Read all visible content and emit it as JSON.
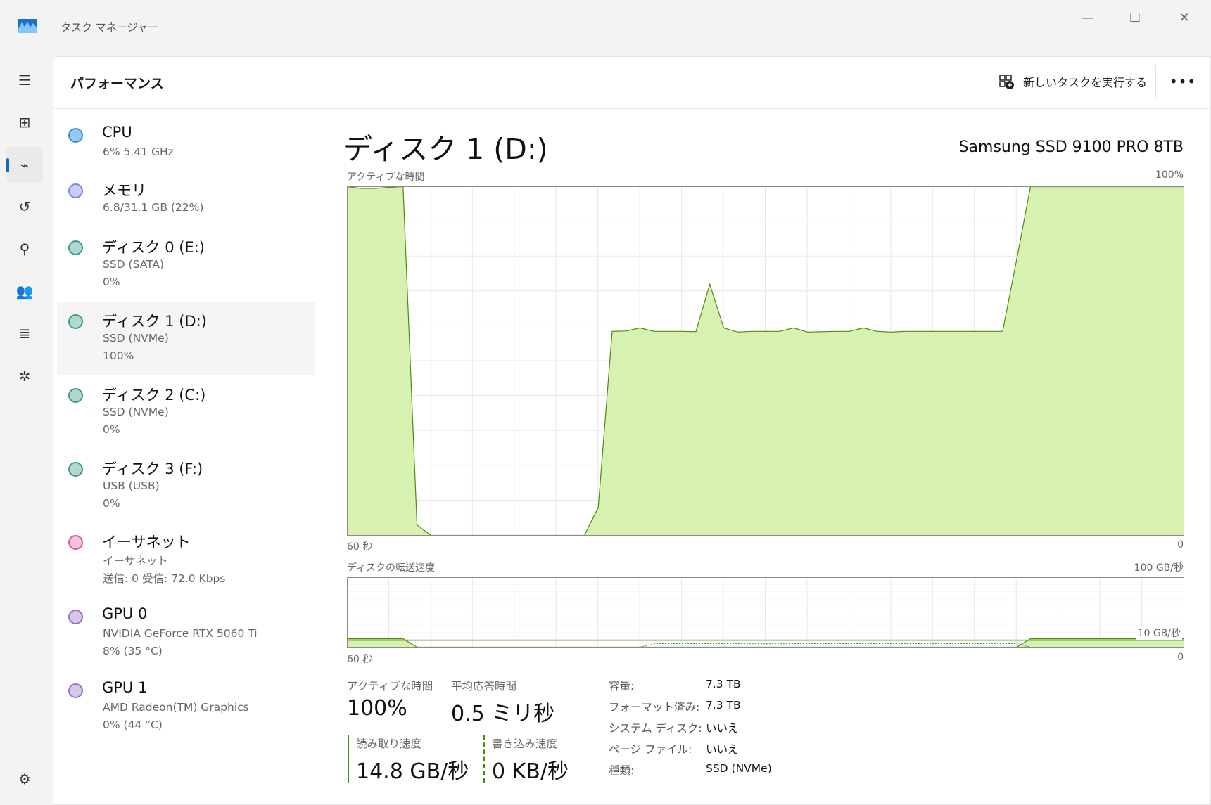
{
  "window": {
    "title": "タスク マネージャー",
    "controls": {
      "minimize": "—",
      "maximize": "☐",
      "close": "✕"
    }
  },
  "rail": {
    "items": [
      {
        "name": "menu-icon",
        "glyph": "☰"
      },
      {
        "name": "processes-icon",
        "glyph": "⊞"
      },
      {
        "name": "performance-icon",
        "glyph": "⌁",
        "selected": true
      },
      {
        "name": "app-history-icon",
        "glyph": "↺"
      },
      {
        "name": "startup-apps-icon",
        "glyph": "⚲"
      },
      {
        "name": "users-icon",
        "glyph": "👥"
      },
      {
        "name": "details-icon",
        "glyph": "≣"
      },
      {
        "name": "services-icon",
        "glyph": "✲"
      }
    ],
    "settings": {
      "name": "settings-gear-icon",
      "glyph": "⚙"
    }
  },
  "header": {
    "title": "パフォーマンス",
    "new_task": "新しいタスクを実行する",
    "more": "•••"
  },
  "devices": [
    {
      "title": "CPU",
      "lines": [
        "6%  5.41 GHz"
      ],
      "color": "#3a8fd6",
      "fill": "#9ac7ee"
    },
    {
      "title": "メモリ",
      "lines": [
        "6.8/31.1 GB (22%)"
      ],
      "color": "#7b87e8",
      "fill": "#c9cdf7"
    },
    {
      "title": "ディスク 0 (E:)",
      "lines": [
        "SSD (SATA)",
        "0%"
      ],
      "color": "#3d9a8a",
      "fill": "#b2d6d0"
    },
    {
      "title": "ディスク 1 (D:)",
      "lines": [
        "SSD (NVMe)",
        "100%"
      ],
      "color": "#3d9a8a",
      "fill": "#b2d6d0",
      "selected": true
    },
    {
      "title": "ディスク 2 (C:)",
      "lines": [
        "SSD (NVMe)",
        "0%"
      ],
      "color": "#3d9a8a",
      "fill": "#b2d6d0"
    },
    {
      "title": "ディスク 3 (F:)",
      "lines": [
        "USB (USB)",
        "0%"
      ],
      "color": "#3d9a8a",
      "fill": "#b2d6d0"
    },
    {
      "title": "イーサネット",
      "lines": [
        "イーサネット",
        "送信: 0 受信: 72.0 Kbps"
      ],
      "color": "#d65aa4",
      "fill": "#f6c1e0"
    },
    {
      "title": "GPU 0",
      "lines": [
        "NVIDIA GeForce RTX 5060 Ti",
        "8% (35 °C)"
      ],
      "color": "#9a72c4",
      "fill": "#d6c6ea"
    },
    {
      "title": "GPU 1",
      "lines": [
        "AMD Radeon(TM) Graphics",
        "0% (44 °C)"
      ],
      "color": "#9a72c4",
      "fill": "#d6c6ea"
    }
  ],
  "detail": {
    "title": "ディスク 1 (D:)",
    "model": "Samsung SSD 9100 PRO 8TB",
    "stats": {
      "active_label": "アクティブな時間",
      "active_value": "100%",
      "response_label": "平均応答時間",
      "response_value": "0.5 ミリ秒",
      "read_label": "読み取り速度",
      "read_value": "14.8 GB/秒",
      "write_label": "書き込み速度",
      "write_value": "0 KB/秒"
    },
    "properties": [
      {
        "label": "容量:",
        "value": "7.3 TB"
      },
      {
        "label": "フォーマット済み:",
        "value": "7.3 TB"
      },
      {
        "label": "システム ディスク:",
        "value": "いいえ"
      },
      {
        "label": "ページ ファイル:",
        "value": "いいえ"
      },
      {
        "label": "種類:",
        "value": "SSD (NVMe)"
      }
    ]
  },
  "colors": {
    "accent": "#0f6cbd",
    "chart_line": "#4d8a10",
    "chart_fill": "#d7f2b0",
    "grid": "#e8e8e8"
  },
  "chart_data": [
    {
      "type": "area",
      "title": "アクティブな時間",
      "ymax_label": "100%",
      "xlabel_left": "60 秒",
      "xlabel_right": "0",
      "ylim": [
        0,
        100
      ],
      "xlim": [
        60,
        0
      ],
      "grid": true,
      "series": [
        {
          "values": [
            100,
            99.5,
            99.5,
            99.8,
            100,
            3,
            0,
            0,
            0,
            0,
            0,
            0,
            0,
            0,
            0,
            0,
            0,
            0,
            8,
            58.5,
            58.6,
            59.5,
            58.5,
            58.5,
            58.5,
            58.4,
            72,
            59.5,
            58.3,
            58.5,
            58.5,
            58.5,
            59.5,
            58.3,
            58.4,
            58.5,
            58.5,
            59.5,
            58.5,
            58.3,
            58.5,
            58.5,
            58.5,
            58.5,
            58.5,
            58.5,
            58.5,
            58.5,
            79,
            100,
            100,
            100,
            100,
            100,
            100,
            100,
            100,
            100,
            100,
            100,
            100
          ]
        }
      ]
    },
    {
      "type": "area",
      "title": "ディスクの転送速度",
      "ymax_label": "100 GB/秒",
      "ref_label": "10 GB/秒",
      "ref_value": 10,
      "xlabel_left": "60 秒",
      "xlabel_right": "0",
      "ylim": [
        0,
        100
      ],
      "xlim": [
        60,
        0
      ],
      "grid": true,
      "series": [
        {
          "values": [
            12,
            12,
            12,
            12,
            12,
            0,
            0,
            0,
            0,
            0,
            0,
            0,
            0,
            0,
            0,
            0,
            0,
            0,
            0,
            0,
            0,
            0,
            0,
            0,
            0,
            0,
            0,
            0,
            0,
            0,
            0,
            0,
            0,
            0,
            0,
            0,
            0,
            0,
            0,
            0,
            0,
            0,
            0,
            0,
            0,
            0,
            0,
            0,
            0,
            12,
            12,
            12,
            12,
            12,
            12,
            12,
            12,
            12,
            12,
            12,
            12
          ]
        },
        {
          "style": "dotted",
          "values": [
            0,
            0,
            0,
            0,
            0,
            0,
            0,
            0,
            0,
            0,
            0,
            0,
            0,
            0,
            0,
            0,
            0,
            0,
            0,
            0,
            0,
            0,
            5,
            5,
            5,
            5,
            5,
            5,
            5,
            4.7,
            4.7,
            4.7,
            5,
            5,
            5,
            5,
            5,
            5,
            5,
            5,
            5,
            5,
            5,
            5,
            5,
            5,
            5,
            5,
            5,
            0,
            0,
            0,
            0,
            0,
            0,
            0,
            0,
            0,
            0,
            0,
            0
          ]
        }
      ]
    }
  ]
}
